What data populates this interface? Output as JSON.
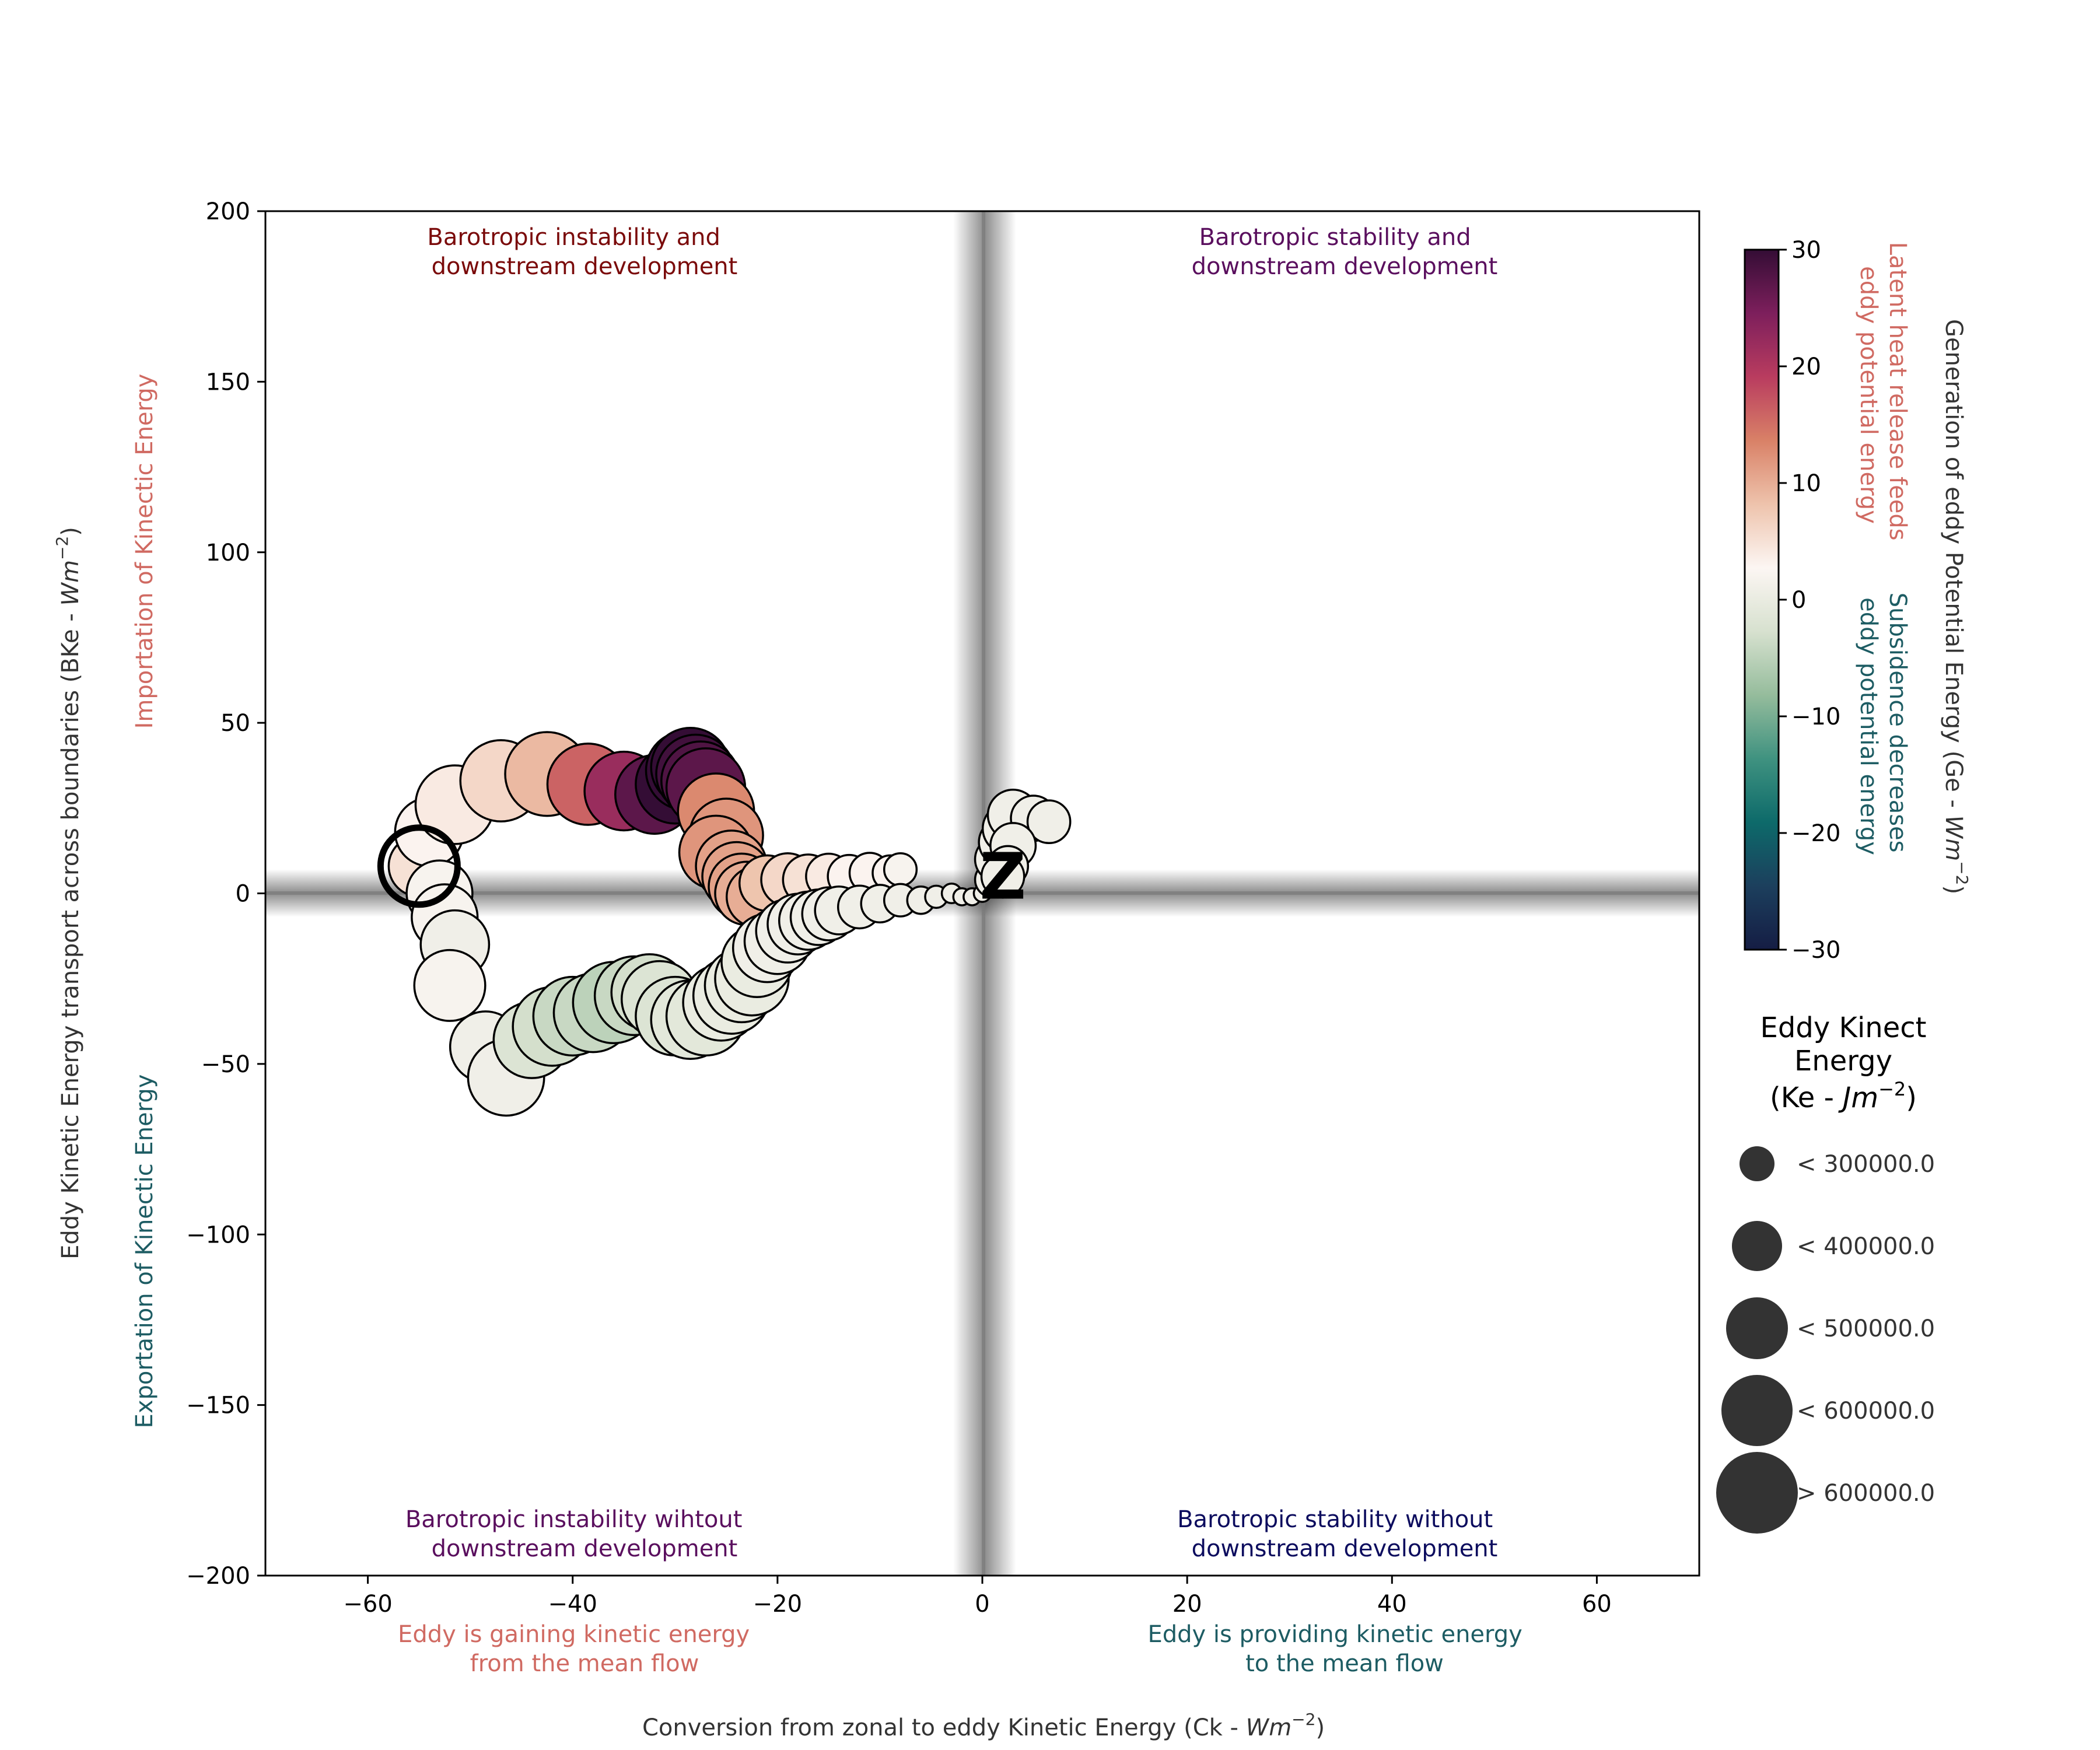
{
  "chart_data": {
    "type": "scatter",
    "title": "",
    "xlabel_prefix": "Conversion from zonal to eddy Kinetic Energy (Ck - ",
    "xlabel_unit": "Wm",
    "xlabel_exp": "−2",
    "xlabel_suffix": ")",
    "ylabel_prefix": "Eddy Kinetic Energy transport across boundaries (BKe - ",
    "ylabel_unit": "Wm",
    "ylabel_exp": "−2",
    "ylabel_suffix": ")",
    "xlim": [
      -70,
      70
    ],
    "ylim": [
      -200,
      200
    ],
    "xticks": [
      -60,
      -40,
      -20,
      0,
      20,
      40,
      60
    ],
    "yticks": [
      -200,
      -150,
      -100,
      -50,
      0,
      50,
      100,
      150,
      200
    ],
    "xtick_labels": [
      "−60",
      "−40",
      "−20",
      "0",
      "20",
      "40",
      "60"
    ],
    "ytick_labels": [
      "−200",
      "−150",
      "−100",
      "−50",
      "0",
      "50",
      "100",
      "150",
      "200"
    ],
    "grid": false,
    "quadrant_labels": {
      "top_left": [
        "Barotropic instability and",
        "downstream development"
      ],
      "top_right": [
        "Barotropic stability and",
        "downstream development"
      ],
      "bottom_left": [
        "Barotropic instability wihtout",
        "downstream development"
      ],
      "bottom_right": [
        "Barotropic stability without",
        "downstream development"
      ]
    },
    "quadrant_label_colors": {
      "top_left": "#7a0a0a",
      "top_right": "#5a0f5e",
      "bottom_left": "#5a0f5e",
      "bottom_right": "#0c0c5e"
    },
    "x_annotations": {
      "left": [
        "Eddy is gaining kinetic energy",
        "from the mean flow"
      ],
      "right": [
        "Eddy is providing kinetic energy",
        "to the mean flow"
      ]
    },
    "y_annotations": {
      "top": "Importation of Kinectic Energy",
      "bottom": "Exportation of Kinectic Energy"
    },
    "annotation_colors": {
      "warm": "#d06a62",
      "cool": "#1d5c63"
    },
    "colorbar": {
      "label_prefix": "Generation of eddy Potential Energy (Ge - ",
      "label_unit": "Wm",
      "label_exp": "−2",
      "label_suffix": ")",
      "min": -30,
      "max": 30,
      "ticks": [
        30,
        20,
        10,
        0,
        -10,
        -20,
        -30
      ],
      "tick_labels": [
        "30",
        "20",
        "10",
        "0",
        "−10",
        "−20",
        "−30"
      ],
      "colormap": "curl",
      "stops": [
        "#151d44",
        "#1c3f5d",
        "#0d6a6a",
        "#3f9280",
        "#95bc9c",
        "#d7e1cf",
        "#fcf6f3",
        "#eec3ac",
        "#d98167",
        "#b93c5f",
        "#7d1f5c",
        "#340d35"
      ],
      "positive_note": [
        "Latent heat release feeds",
        "eddy potential energy"
      ],
      "negative_note": [
        "Subsidence decreases",
        "eddy potential energy"
      ]
    },
    "size_legend": {
      "title_line1": "Eddy Kinect",
      "title_line2": "Energy",
      "title_line3_prefix": "(Ke - ",
      "title_line3_unit": "Jm",
      "title_line3_exp": "−2",
      "title_line3_suffix": ")",
      "entries": [
        "< 300000.0",
        "< 400000.0",
        "< 500000.0",
        "< 600000.0",
        "> 600000.0"
      ],
      "color": "#333333"
    },
    "start_marker": {
      "x": -55,
      "y": 8
    },
    "end_marker": {
      "x": 2,
      "y": 5,
      "symbol": "Z"
    },
    "series": [
      {
        "columns": [
          "Ck",
          "BKe",
          "Ge",
          "Ke"
        ],
        "points": [
          [
            -55,
            8,
            5,
            400000
          ],
          [
            -54,
            18,
            3,
            430000
          ],
          [
            -51.5,
            26,
            4,
            470000
          ],
          [
            -47,
            33,
            6,
            480000
          ],
          [
            -42.5,
            35,
            9,
            490000
          ],
          [
            -38.5,
            32,
            16,
            480000
          ],
          [
            -35,
            30,
            22,
            470000
          ],
          [
            -32,
            29,
            27,
            470000
          ],
          [
            -30,
            32,
            30,
            470000
          ],
          [
            -29,
            36,
            30,
            470000
          ],
          [
            -28.5,
            37,
            30,
            470000
          ],
          [
            -28,
            35,
            29,
            470000
          ],
          [
            -27.5,
            33,
            28,
            470000
          ],
          [
            -27,
            31,
            27,
            470000
          ],
          [
            -26,
            24,
            13,
            460000
          ],
          [
            -25,
            17,
            12,
            450000
          ],
          [
            -26,
            12,
            12,
            450000
          ],
          [
            -24.5,
            8,
            11,
            440000
          ],
          [
            -24,
            5,
            11,
            430000
          ],
          [
            -23.5,
            2,
            11,
            420000
          ],
          [
            -23,
            0,
            10,
            410000
          ],
          [
            -22,
            -1,
            10,
            400000
          ],
          [
            -21,
            3,
            8,
            380000
          ],
          [
            -19,
            4,
            6,
            370000
          ],
          [
            -17,
            4,
            5,
            360000
          ],
          [
            -15,
            5,
            4,
            340000
          ],
          [
            -13,
            5,
            3,
            330000
          ],
          [
            -11,
            6,
            3,
            320000
          ],
          [
            -9,
            6,
            3,
            300000
          ],
          [
            -8,
            7,
            2,
            290000
          ],
          [
            -53,
            0,
            2,
            420000
          ],
          [
            -52.5,
            -7,
            2,
            420000
          ],
          [
            -51.5,
            -15,
            1,
            430000
          ],
          [
            -52,
            -27,
            2,
            440000
          ],
          [
            -48.5,
            -45,
            1,
            440000
          ],
          [
            -46.5,
            -54,
            1,
            460000
          ],
          [
            -44,
            -43,
            -2,
            460000
          ],
          [
            -42,
            -39,
            -3,
            470000
          ],
          [
            -40,
            -36,
            -4,
            470000
          ],
          [
            -38,
            -35,
            -4,
            470000
          ],
          [
            -36,
            -32,
            -5,
            480000
          ],
          [
            -34,
            -30,
            -4,
            470000
          ],
          [
            -32.5,
            -29,
            -3,
            460000
          ],
          [
            -31.5,
            -31,
            -2,
            460000
          ],
          [
            -30,
            -36,
            -2,
            470000
          ],
          [
            -28.5,
            -37,
            -1,
            470000
          ],
          [
            -27,
            -36,
            -1,
            470000
          ],
          [
            -25.5,
            -32,
            0,
            460000
          ],
          [
            -24.5,
            -30,
            0,
            460000
          ],
          [
            -23.5,
            -27,
            0,
            450000
          ],
          [
            -22.5,
            -25,
            0,
            450000
          ],
          [
            -22,
            -20,
            0,
            440000
          ],
          [
            -21,
            -16,
            1,
            430000
          ],
          [
            -20,
            -14,
            1,
            420000
          ],
          [
            -19,
            -11,
            1,
            410000
          ],
          [
            -18,
            -9,
            1,
            400000
          ],
          [
            -17,
            -8,
            1,
            390000
          ],
          [
            -16,
            -7,
            1,
            380000
          ],
          [
            -15,
            -6,
            1,
            370000
          ],
          [
            -14,
            -5,
            1,
            350000
          ],
          [
            -12,
            -4,
            1,
            330000
          ],
          [
            -10,
            -3,
            1,
            310000
          ],
          [
            -8,
            -2,
            1,
            290000
          ],
          [
            -6,
            -2,
            1,
            270000
          ],
          [
            -4.5,
            -1,
            1,
            250000
          ],
          [
            -3,
            0,
            1,
            240000
          ],
          [
            -2,
            -1,
            1,
            230000
          ],
          [
            -1,
            -1,
            1,
            230000
          ],
          [
            0,
            0,
            1,
            230000
          ],
          [
            1,
            4,
            1,
            300000
          ],
          [
            1.5,
            10,
            1,
            340000
          ],
          [
            2,
            15,
            1,
            350000
          ],
          [
            2.5,
            19,
            1,
            360000
          ],
          [
            3,
            23,
            1,
            360000
          ],
          [
            5,
            22,
            1,
            340000
          ],
          [
            6.5,
            21,
            1,
            330000
          ],
          [
            3,
            14,
            1,
            340000
          ],
          [
            2.5,
            8,
            1,
            320000
          ],
          [
            2,
            5,
            1,
            330000
          ]
        ]
      }
    ]
  }
}
